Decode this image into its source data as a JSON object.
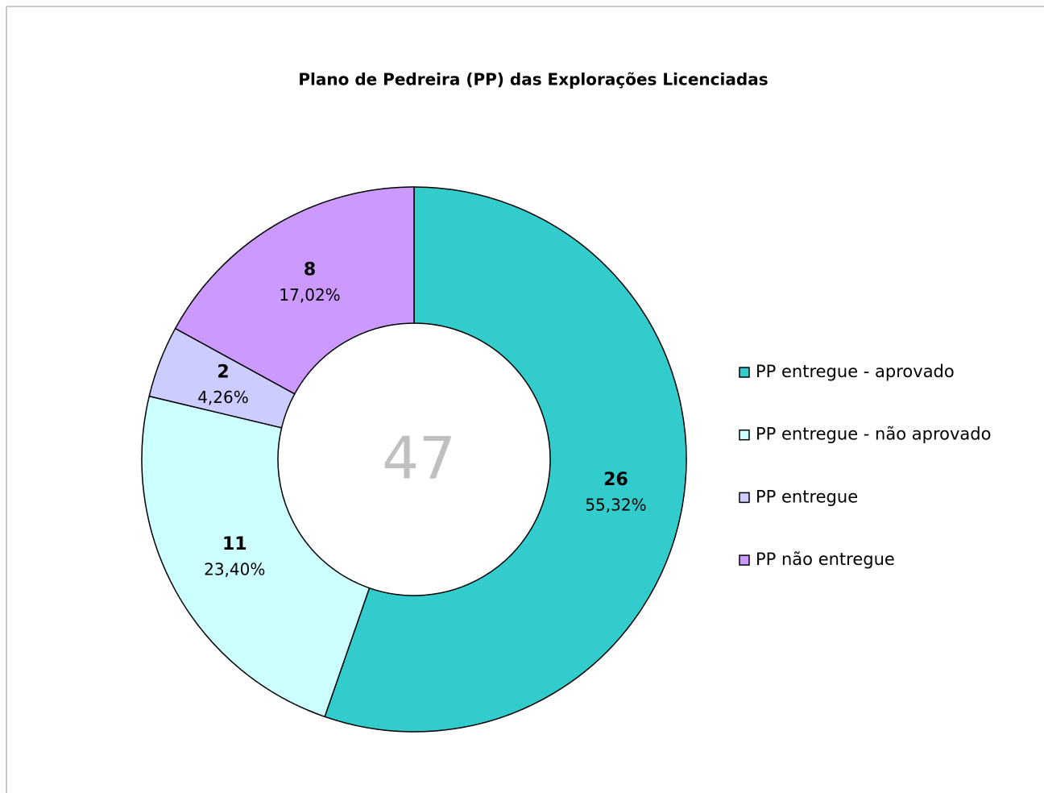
{
  "chart_data": {
    "type": "donut",
    "title": "Plano de Pedreira (PP) das Explorações Licenciadas",
    "categories": [
      "PP entregue - aprovado",
      "PP entregue - não aprovado",
      "PP entregue",
      "PP não entregue"
    ],
    "values": [
      26,
      11,
      2,
      8
    ],
    "percentages": [
      55.32,
      23.4,
      4.26,
      17.02
    ],
    "percent_labels": [
      "55,32%",
      "23,40%",
      "4,26%",
      "17,02%"
    ],
    "colors": [
      "#33cccc",
      "#ccffff",
      "#ccccff",
      "#cc99ff"
    ],
    "total": 47,
    "legend": "right"
  }
}
